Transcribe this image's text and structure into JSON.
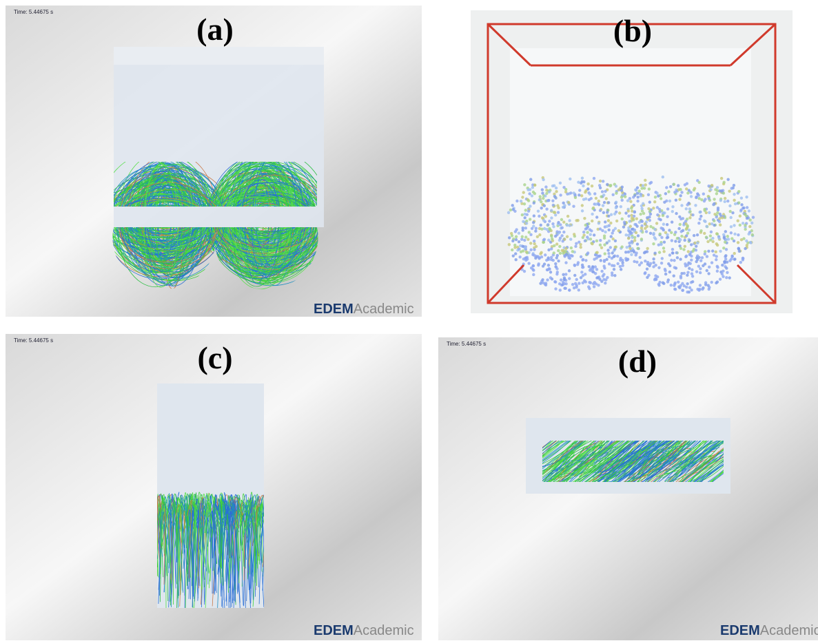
{
  "panels": [
    {
      "label": "(a)",
      "time": "Time: 5.44675 s",
      "logo_bold": "EDEM",
      "logo_light": "Academic"
    },
    {
      "label": "(b)"
    },
    {
      "label": "(c)",
      "time": "Time: 5.44675 s",
      "logo_bold": "EDEM",
      "logo_light": "Academic"
    },
    {
      "label": "(d)",
      "time": "Time: 5.44675 s",
      "logo_bold": "EDEM",
      "logo_light": "Academic"
    }
  ]
}
